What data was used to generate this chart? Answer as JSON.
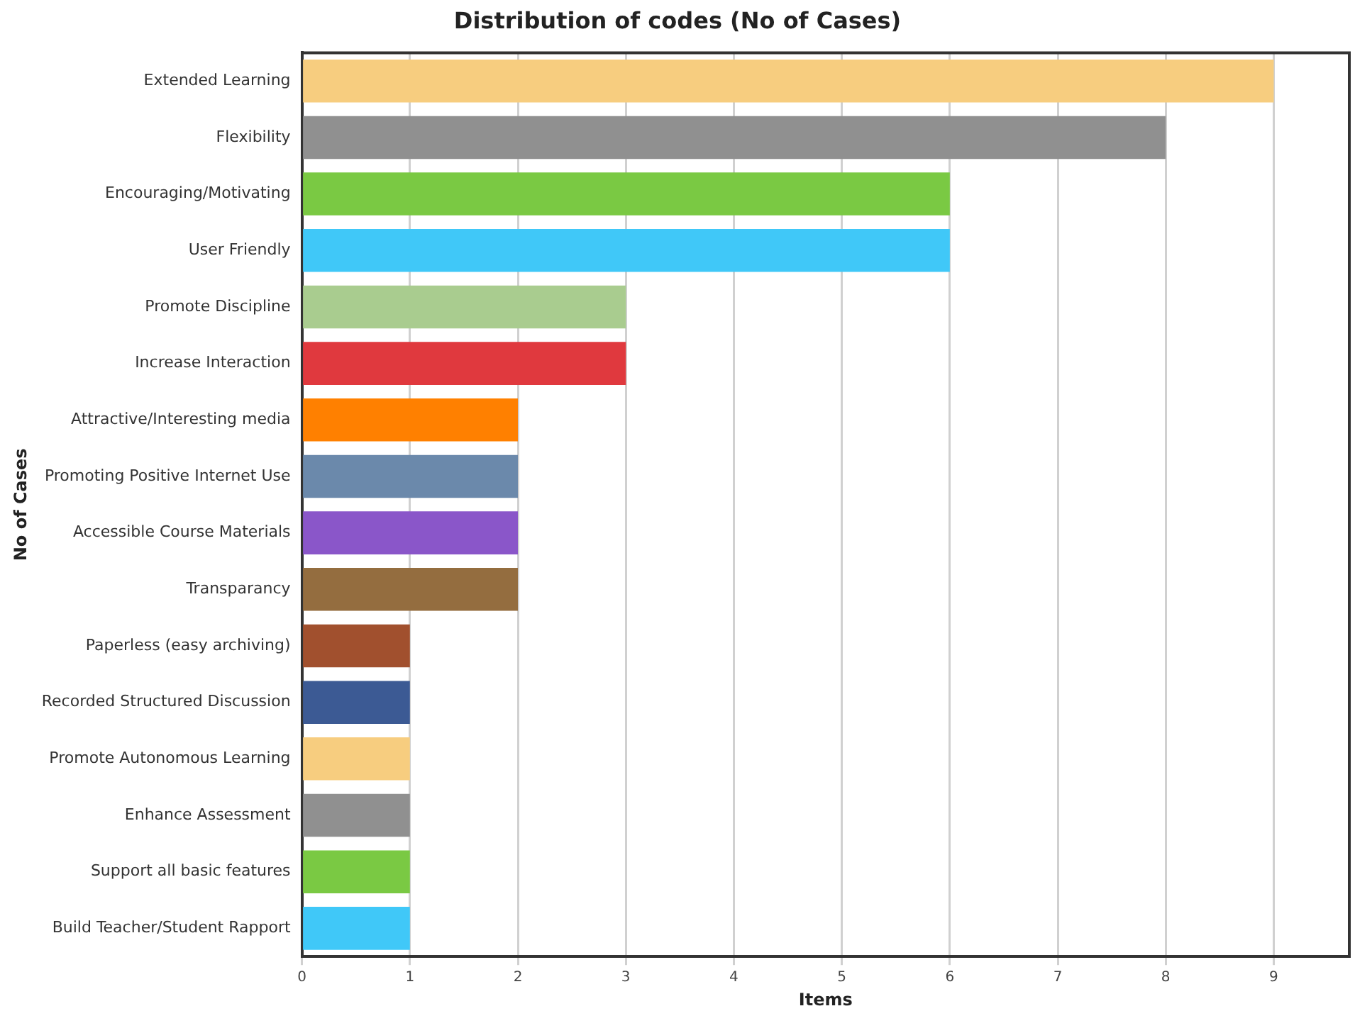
{
  "chart_data": {
    "type": "bar",
    "orientation": "horizontal",
    "title": "Distribution of codes (No of Cases)",
    "xlabel": "Items",
    "ylabel": "No of Cases",
    "categories": [
      "Extended Learning",
      "Flexibility",
      "Encouraging/Motivating",
      "User Friendly",
      "Promote Discipline",
      "Increase Interaction",
      "Attractive/Interesting media",
      "Promoting Positive Internet Use",
      "Accessible Course Materials",
      "Transparancy",
      "Paperless (easy archiving)",
      "Recorded Structured Discussion",
      "Promote Autonomous Learning",
      "Enhance Assessment",
      "Support all basic features",
      "Build Teacher/Student Rapport"
    ],
    "values": [
      9,
      8,
      6,
      6,
      3,
      3,
      2,
      2,
      2,
      2,
      1,
      1,
      1,
      1,
      1,
      1
    ],
    "colors": [
      "#f7cd7f",
      "#909090",
      "#7ac943",
      "#40c8f8",
      "#a9cc8f",
      "#e0393e",
      "#ff8000",
      "#6b89ab",
      "#8a56c9",
      "#946d3f",
      "#a1502e",
      "#3c5a94",
      "#f7cd7f",
      "#909090",
      "#7ac943",
      "#40c8f8"
    ],
    "xlim": [
      0,
      9.7
    ],
    "xticks": [
      0,
      1,
      2,
      3,
      4,
      5,
      6,
      7,
      8,
      9
    ],
    "grid": "x",
    "legend": false
  }
}
